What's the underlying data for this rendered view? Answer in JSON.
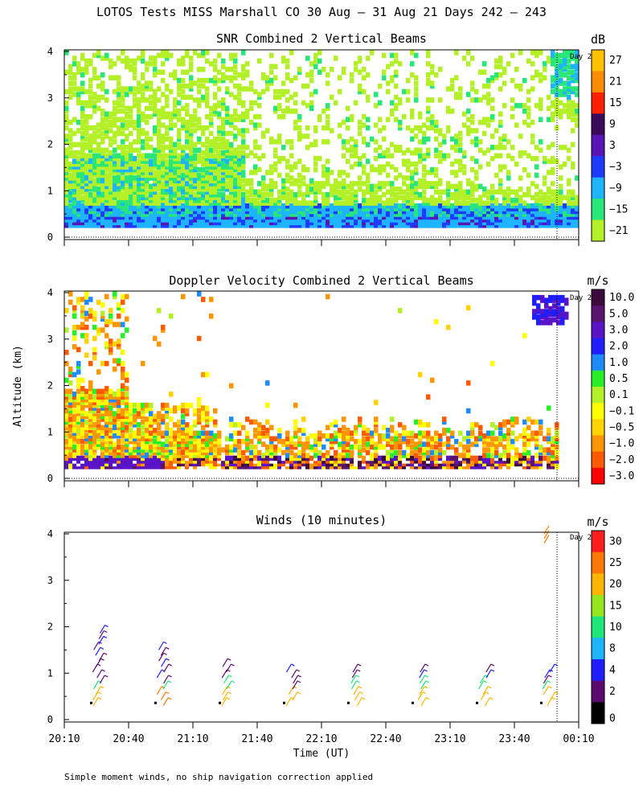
{
  "figure": {
    "title": "LOTOS Tests MISS Marshall CO  30 Aug — 31 Aug 21 Days 242 — 243",
    "footnote": "Simple moment winds, no ship navigation correction applied",
    "day_marker": "Day 2"
  },
  "chart_data": [
    {
      "type": "heatmap",
      "title": "SNR Combined 2 Vertical Beams",
      "ylabel": "",
      "xlabel": "",
      "ylim": [
        0,
        4
      ],
      "yticks": [
        "0",
        "1",
        "2",
        "3",
        "4"
      ],
      "colorbar": {
        "unit": "dB",
        "labels": [
          "27",
          "21",
          "15",
          "9",
          "3",
          "−3",
          "−9",
          "−15",
          "−21"
        ],
        "colors": [
          "#ffc000",
          "#ff8c00",
          "#ff2000",
          "#3c0a5a",
          "#5a14b4",
          "#1e3cff",
          "#1eb4ff",
          "#28e678",
          "#b4f028"
        ]
      }
    },
    {
      "type": "heatmap",
      "title": "Doppler Velocity Combined 2 Vertical Beams",
      "ylabel": "Altitude (km)",
      "xlabel": "",
      "ylim": [
        0,
        4
      ],
      "yticks": [
        "0",
        "1",
        "2",
        "3",
        "4"
      ],
      "colorbar": {
        "unit": "m/s",
        "labels": [
          "10.0",
          "5.0",
          "3.0",
          "2.0",
          "1.0",
          "0.5",
          "0.1",
          "−0.1",
          "−0.5",
          "−1.0",
          "−2.0",
          "−3.0"
        ],
        "colors": [
          "#3c0a3c",
          "#5a146e",
          "#5a14c8",
          "#1e1eff",
          "#1e8cff",
          "#28f028",
          "#b4f028",
          "#ffff00",
          "#ffd200",
          "#ff9600",
          "#ff5a00",
          "#ff0000"
        ]
      }
    },
    {
      "type": "scatter",
      "title": "Winds (10 minutes)",
      "ylabel": "",
      "xlabel": "Time (UT)",
      "ylim": [
        0,
        4
      ],
      "yticks": [
        "0",
        "1",
        "2",
        "3",
        "4"
      ],
      "xticks": [
        "20:10",
        "20:40",
        "21:10",
        "21:40",
        "22:10",
        "22:40",
        "23:10",
        "23:40",
        "00:10"
      ],
      "colorbar": {
        "unit": "m/s",
        "labels": [
          "30",
          "25",
          "20",
          "15",
          "10",
          "8",
          "4",
          "2",
          "0"
        ],
        "colors": [
          "#ff1e1e",
          "#ff7800",
          "#ffb400",
          "#96e61e",
          "#1ee678",
          "#1eb4ff",
          "#1e1eff",
          "#5a0a6e",
          "#000000"
        ]
      },
      "profiles_time": [
        "20:35",
        "21:05",
        "21:35",
        "22:05",
        "22:35",
        "23:05",
        "23:35",
        "00:05"
      ]
    }
  ]
}
